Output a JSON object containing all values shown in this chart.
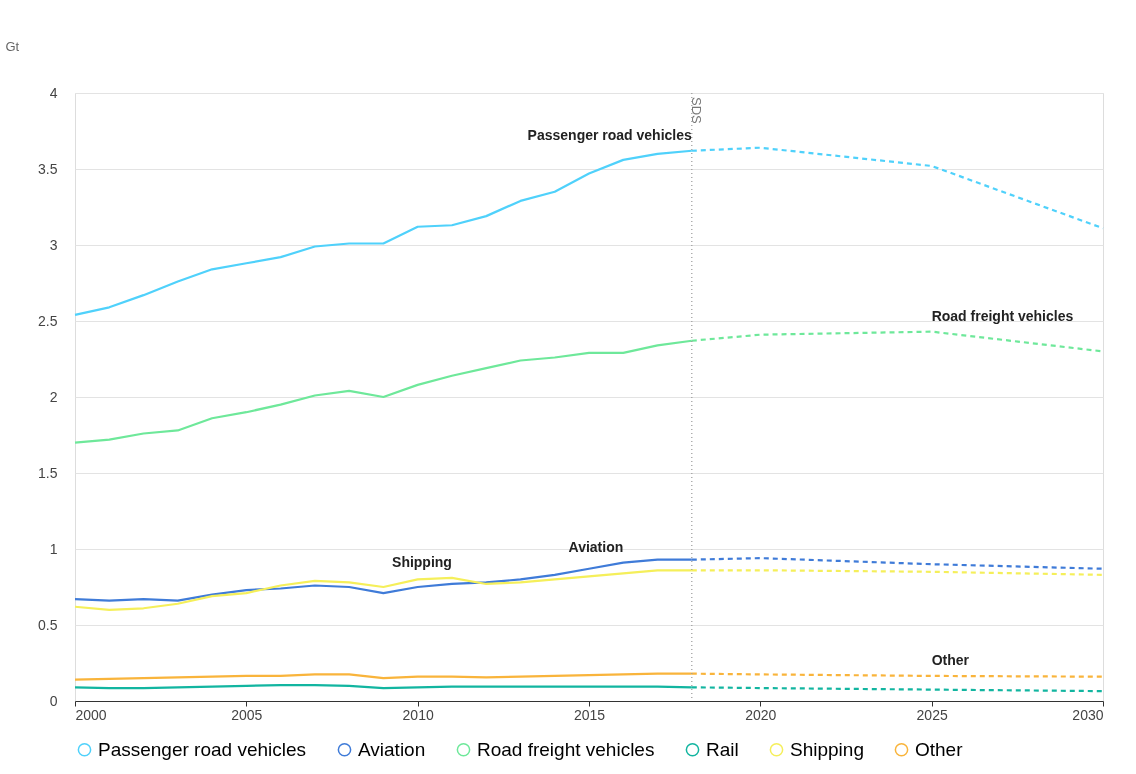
{
  "chart_data": {
    "type": "line",
    "ylabel": "Gt",
    "xlim": [
      2000,
      2030
    ],
    "xticks": [
      2000,
      2005,
      2010,
      2015,
      2020,
      2025,
      2030
    ],
    "ylim": [
      0,
      4
    ],
    "yticks": [
      0,
      0.5,
      1,
      1.5,
      2,
      2.5,
      3,
      3.5,
      4
    ],
    "grid": "y",
    "legend": "bottom",
    "marker": "none",
    "series": [
      {
        "name": "Passenger road vehicles",
        "color": "#4fd1fb",
        "line_style": "solid",
        "x": [
          2000,
          2001,
          2002,
          2003,
          2004,
          2005,
          2006,
          2007,
          2008,
          2009,
          2010,
          2011,
          2012,
          2013,
          2014,
          2015,
          2016,
          2017,
          2018
        ],
        "values": [
          2.54,
          2.59,
          2.67,
          2.76,
          2.84,
          2.88,
          2.92,
          2.99,
          3.01,
          3.01,
          3.12,
          3.13,
          3.19,
          3.29,
          3.35,
          3.47,
          3.56,
          3.6,
          3.62
        ]
      },
      {
        "color": "#4fd1fb",
        "line_style": "dashed",
        "x": [
          2018,
          2020,
          2025,
          2030
        ],
        "values": [
          3.62,
          3.64,
          3.52,
          3.11
        ]
      },
      {
        "name": "Aviation",
        "color": "#3f7bd8",
        "line_style": "solid",
        "x": [
          2000,
          2001,
          2002,
          2003,
          2004,
          2005,
          2006,
          2007,
          2008,
          2009,
          2010,
          2011,
          2012,
          2013,
          2014,
          2015,
          2016,
          2017,
          2018
        ],
        "values": [
          0.67,
          0.66,
          0.67,
          0.66,
          0.7,
          0.73,
          0.74,
          0.76,
          0.75,
          0.71,
          0.75,
          0.77,
          0.78,
          0.8,
          0.83,
          0.87,
          0.91,
          0.93,
          0.93
        ]
      },
      {
        "color": "#3f7bd8",
        "line_style": "dashed",
        "x": [
          2018,
          2020,
          2025,
          2030
        ],
        "values": [
          0.93,
          0.94,
          0.9,
          0.87
        ]
      },
      {
        "name": "Road freight vehicles",
        "color": "#6ee89a",
        "line_style": "solid",
        "x": [
          2000,
          2001,
          2002,
          2003,
          2004,
          2005,
          2006,
          2007,
          2008,
          2009,
          2010,
          2011,
          2012,
          2013,
          2014,
          2015,
          2016,
          2017,
          2018
        ],
        "values": [
          1.7,
          1.72,
          1.76,
          1.78,
          1.86,
          1.9,
          1.95,
          2.01,
          2.04,
          2.0,
          2.08,
          2.14,
          2.19,
          2.24,
          2.26,
          2.29,
          2.29,
          2.34,
          2.37
        ]
      },
      {
        "color": "#6ee89a",
        "line_style": "dashed",
        "x": [
          2018,
          2020,
          2025,
          2030
        ],
        "values": [
          2.37,
          2.41,
          2.43,
          2.3
        ]
      },
      {
        "name": "Rail",
        "color": "#12b5a0",
        "line_style": "solid",
        "x": [
          2000,
          2001,
          2002,
          2003,
          2004,
          2005,
          2006,
          2007,
          2008,
          2009,
          2010,
          2011,
          2012,
          2013,
          2014,
          2015,
          2016,
          2017,
          2018
        ],
        "values": [
          0.09,
          0.085,
          0.085,
          0.09,
          0.095,
          0.1,
          0.105,
          0.105,
          0.1,
          0.085,
          0.09,
          0.095,
          0.095,
          0.095,
          0.095,
          0.095,
          0.095,
          0.095,
          0.09
        ]
      },
      {
        "color": "#12b5a0",
        "line_style": "dashed",
        "x": [
          2018,
          2020,
          2025,
          2030
        ],
        "values": [
          0.09,
          0.085,
          0.075,
          0.065
        ]
      },
      {
        "name": "Shipping",
        "color": "#f5ef5a",
        "line_style": "solid",
        "x": [
          2000,
          2001,
          2002,
          2003,
          2004,
          2005,
          2006,
          2007,
          2008,
          2009,
          2010,
          2011,
          2012,
          2013,
          2014,
          2015,
          2016,
          2017,
          2018
        ],
        "values": [
          0.62,
          0.6,
          0.61,
          0.64,
          0.69,
          0.71,
          0.76,
          0.79,
          0.78,
          0.75,
          0.8,
          0.81,
          0.77,
          0.78,
          0.8,
          0.82,
          0.84,
          0.86,
          0.86
        ]
      },
      {
        "color": "#f5ef5a",
        "line_style": "dashed",
        "x": [
          2018,
          2020,
          2025,
          2030
        ],
        "values": [
          0.86,
          0.86,
          0.85,
          0.83
        ]
      },
      {
        "name": "Other",
        "color": "#f9b43b",
        "line_style": "solid",
        "x": [
          2000,
          2001,
          2002,
          2003,
          2004,
          2005,
          2006,
          2007,
          2008,
          2009,
          2010,
          2011,
          2012,
          2013,
          2014,
          2015,
          2016,
          2017,
          2018
        ],
        "values": [
          0.14,
          0.145,
          0.15,
          0.155,
          0.16,
          0.165,
          0.165,
          0.175,
          0.175,
          0.15,
          0.16,
          0.16,
          0.155,
          0.16,
          0.165,
          0.17,
          0.175,
          0.18,
          0.18
        ]
      },
      {
        "color": "#f9b43b",
        "line_style": "dashed",
        "x": [
          2018,
          2020,
          2025,
          2030
        ],
        "values": [
          0.18,
          0.175,
          0.165,
          0.16
        ]
      }
    ],
    "ref_lines": [
      {
        "axis": "x",
        "value": 2018,
        "label": "SDS",
        "color": "#999999",
        "line_style": "dotted"
      }
    ],
    "annotations": [
      {
        "text": "Passenger road vehicles",
        "x": 2018,
        "y": 3.62
      },
      {
        "text": "Road freight vehicles",
        "x": 2025,
        "y": 2.43
      },
      {
        "text": "Shipping",
        "x": 2011,
        "y": 0.81
      },
      {
        "text": "Aviation",
        "x": 2016,
        "y": 0.91
      },
      {
        "text": "Other",
        "x": 2025,
        "y": 0.165
      }
    ]
  }
}
